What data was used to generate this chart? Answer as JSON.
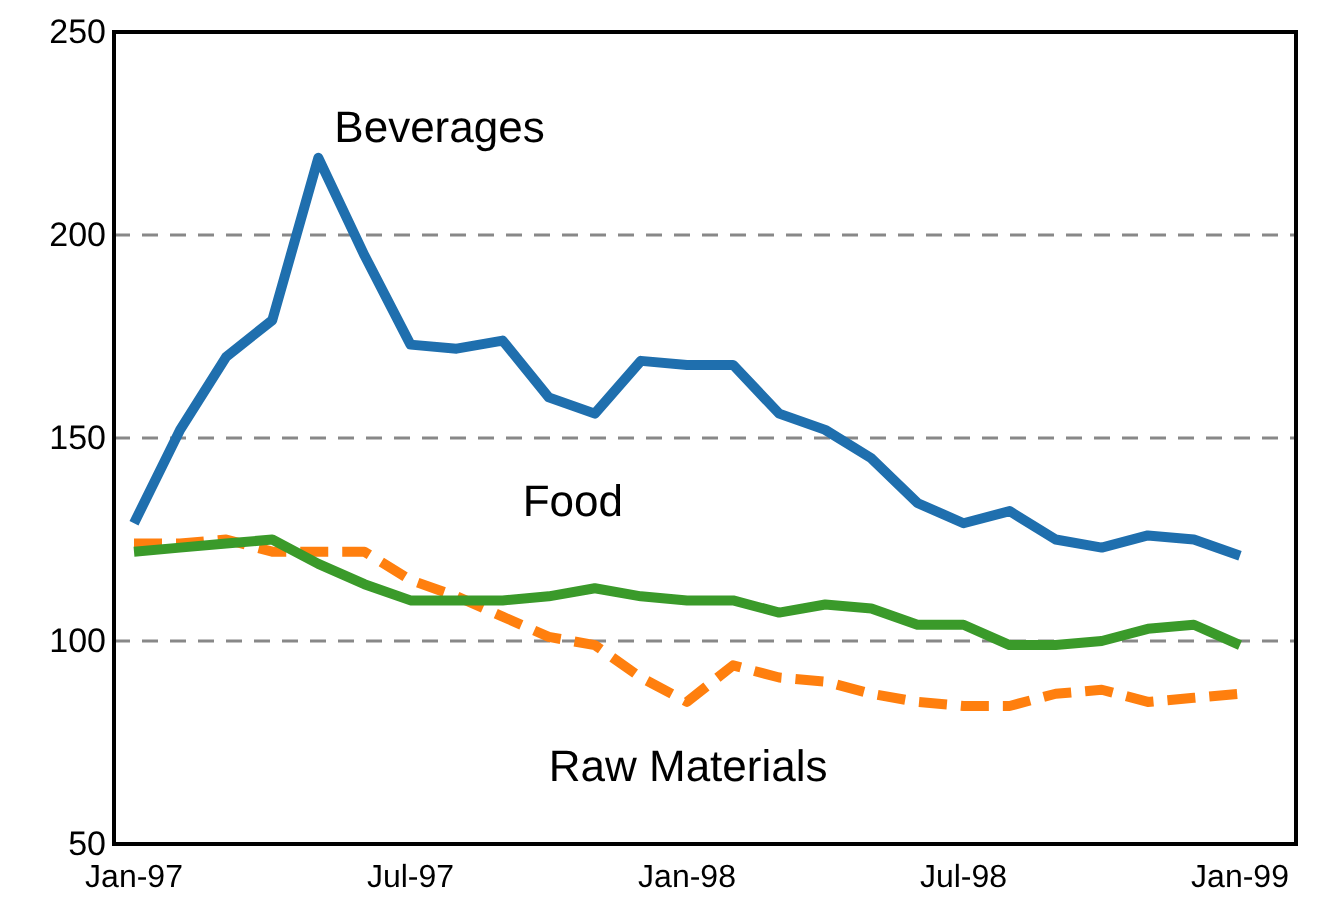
{
  "chart_data": {
    "type": "line",
    "categories": [
      "Jan-97",
      null,
      null,
      null,
      null,
      null,
      "Jul-97",
      null,
      null,
      null,
      null,
      null,
      "Jan-98",
      null,
      null,
      null,
      null,
      null,
      "Jul-98",
      null,
      null,
      null,
      null,
      null,
      "Jan-99"
    ],
    "series": [
      {
        "name": "Beverages",
        "color": "#1f6fae",
        "line_style": "solid",
        "values": [
          129,
          152,
          170,
          179,
          219,
          195,
          173,
          172,
          174,
          160,
          156,
          169,
          168,
          168,
          156,
          152,
          145,
          134,
          129,
          132,
          125,
          123,
          126,
          125,
          121
        ]
      },
      {
        "name": "Food",
        "color": "#3a9a2a",
        "line_style": "solid",
        "values": [
          122,
          123,
          124,
          125,
          119,
          114,
          110,
          110,
          110,
          111,
          113,
          111,
          110,
          110,
          107,
          109,
          108,
          104,
          104,
          99,
          99,
          100,
          103,
          104,
          99
        ]
      },
      {
        "name": "Raw Materials",
        "color": "#ff7f0e",
        "line_style": "dashed",
        "values": [
          124,
          124,
          125,
          122,
          122,
          122,
          115,
          111,
          106,
          101,
          99,
          91,
          85,
          94,
          91,
          90,
          87,
          85,
          84,
          84,
          87,
          88,
          85,
          86,
          87
        ]
      }
    ],
    "ylim": [
      50,
      250
    ],
    "yticks": [
      50,
      100,
      150,
      200,
      250
    ],
    "grid": "y"
  }
}
